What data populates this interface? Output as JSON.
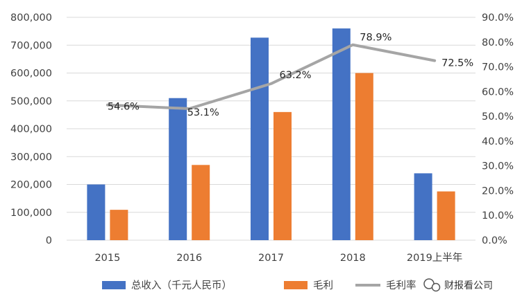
{
  "chart_data": {
    "type": "bar",
    "categories": [
      "2015",
      "2016",
      "2017",
      "2018",
      "2019上半年"
    ],
    "series": [
      {
        "name": "总收入（千元人民币）",
        "type": "bar",
        "axis": "left",
        "color": "#4472C4",
        "values": [
          200000,
          510000,
          727000,
          760000,
          240000
        ]
      },
      {
        "name": "毛利",
        "type": "bar",
        "axis": "left",
        "color": "#ED7D31",
        "values": [
          109000,
          270000,
          460000,
          600000,
          175000
        ]
      },
      {
        "name": "毛利率",
        "type": "line",
        "axis": "right",
        "color": "#A5A5A5",
        "values": [
          54.6,
          53.1,
          63.2,
          78.9,
          72.5
        ],
        "labels": [
          "54.6%",
          "53.1%",
          "63.2%",
          "78.9%",
          "72.5%"
        ]
      }
    ],
    "y_left": {
      "ylim": [
        0,
        800000
      ],
      "ticks": [
        "0",
        "100,000",
        "200,000",
        "300,000",
        "400,000",
        "500,000",
        "600,000",
        "700,000",
        "800,000"
      ]
    },
    "y_right": {
      "ylim": [
        0,
        90
      ],
      "ticks": [
        "0.0%",
        "10.0%",
        "20.0%",
        "30.0%",
        "40.0%",
        "50.0%",
        "60.0%",
        "70.0%",
        "80.0%",
        "90.0%"
      ]
    },
    "grid": true,
    "legend": {
      "position": "bottom"
    }
  },
  "watermark": {
    "text": "财报看公司",
    "icon": "wechat-icon"
  }
}
